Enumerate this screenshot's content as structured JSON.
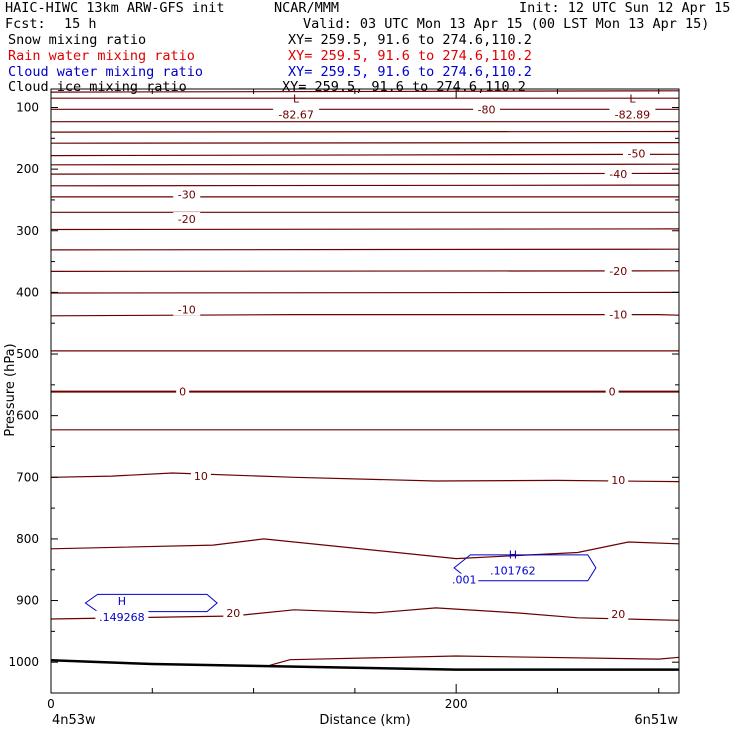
{
  "header": {
    "title": "HAIC-HIWC 13km ARW-GFS init",
    "org": "NCAR/MMM",
    "init": "Init: 12 UTC Sun 12 Apr 15",
    "fcst_label": "Fcst:",
    "fcst_value": "15 h",
    "valid": "Valid: 03 UTC Mon 13 Apr 15 (00 LST Mon 13 Apr 15)"
  },
  "fields": [
    {
      "name": "Snow mixing ratio",
      "xy": "XY= 259.5, 91.6 to 274.6,110.2",
      "color": "#000000"
    },
    {
      "name": "Rain water mixing ratio",
      "xy": "XY= 259.5, 91.6 to 274.6,110.2",
      "color": "#e00000"
    },
    {
      "name": "Cloud water mixing ratio",
      "xy": "XY= 259.5, 91.6 to 274.6,110.2",
      "color": "#0000c8"
    },
    {
      "name": "Cloud ice mixing ratio",
      "xy": "XY= 259.5, 91.6 to 274.6,110.2",
      "color": "#000000"
    }
  ],
  "colors": {
    "temperature": "#6b0000",
    "cloud_water": "#0000c8",
    "terrain": "#000000"
  },
  "chart_data": {
    "type": "line",
    "xlabel": "Distance (km)",
    "ylabel": "Pressure (hPa)",
    "xlim": [
      0,
      310
    ],
    "ylim_pressure_hpa": [
      1050,
      70
    ],
    "x_ticks": [
      0,
      200
    ],
    "y_ticks": [
      100,
      200,
      300,
      400,
      500,
      600,
      700,
      800,
      900,
      1000
    ],
    "y_tick_labels": [
      "100",
      "200",
      "300",
      "400",
      "500",
      "600",
      "700",
      "800",
      "900",
      "1000"
    ],
    "endpoints": {
      "left": "4n53w",
      "right": "6n51w"
    },
    "temperature_contours": [
      {
        "x": [
          0,
          310
        ],
        "p": [
          75,
          73
        ]
      },
      {
        "x": [
          0,
          310
        ],
        "p": [
          85,
          85
        ]
      },
      {
        "x": [
          0,
          310
        ],
        "p": [
          103,
          103
        ]
      },
      {
        "x": [
          0,
          310
        ],
        "p": [
          123,
          123
        ]
      },
      {
        "x": [
          0,
          310
        ],
        "p": [
          140,
          139
        ]
      },
      {
        "x": [
          0,
          310
        ],
        "p": [
          158,
          157
        ]
      },
      {
        "x": [
          0,
          310
        ],
        "p": [
          178,
          176
        ]
      },
      {
        "x": [
          0,
          310
        ],
        "p": [
          193,
          192
        ]
      },
      {
        "x": [
          0,
          310
        ],
        "p": [
          208,
          207
        ]
      },
      {
        "x": [
          0,
          310
        ],
        "p": [
          227,
          226
        ]
      },
      {
        "x": [
          0,
          310
        ],
        "p": [
          245,
          245
        ]
      },
      {
        "x": [
          0,
          310
        ],
        "p": [
          270,
          270
        ]
      },
      {
        "x": [
          0,
          310
        ],
        "p": [
          298,
          297
        ]
      },
      {
        "x": [
          0,
          310
        ],
        "p": [
          331,
          330
        ]
      },
      {
        "x": [
          0,
          310
        ],
        "p": [
          366,
          365
        ]
      },
      {
        "x": [
          0,
          310
        ],
        "p": [
          401,
          400
        ]
      },
      {
        "x": [
          0,
          120,
          300,
          310
        ],
        "p": [
          438,
          436,
          436,
          437
        ]
      },
      {
        "x": [
          0,
          310
        ],
        "p": [
          495,
          495
        ]
      },
      {
        "x": [
          0,
          310
        ],
        "p": [
          561,
          561
        ]
      },
      {
        "x": [
          0,
          310
        ],
        "p": [
          623,
          623
        ]
      },
      {
        "x": [
          0,
          30,
          60,
          120,
          190,
          250,
          310
        ],
        "p": [
          700,
          698,
          693,
          700,
          706,
          705,
          707
        ]
      },
      {
        "x": [
          0,
          80,
          105,
          200,
          260,
          285,
          310
        ],
        "p": [
          816,
          810,
          800,
          832,
          822,
          805,
          808
        ]
      },
      {
        "x": [
          0,
          90,
          120,
          160,
          190,
          230,
          260,
          310
        ],
        "p": [
          930,
          925,
          915,
          920,
          912,
          920,
          928,
          932
        ]
      },
      {
        "x": [
          108,
          118,
          200,
          300,
          310
        ],
        "p": [
          1005,
          996,
          990,
          995,
          992
        ]
      }
    ],
    "contour_labels": [
      {
        "text": "-30",
        "x": 67,
        "p": 241
      },
      {
        "text": "-20",
        "x": 67,
        "p": 281
      },
      {
        "text": "-10",
        "x": 67,
        "p": 428
      },
      {
        "text": "0",
        "x": 65,
        "p": 561
      },
      {
        "text": "10",
        "x": 74,
        "p": 698
      },
      {
        "text": "20",
        "x": 90,
        "p": 920
      },
      {
        "text": "-80",
        "x": 215,
        "p": 103
      },
      {
        "text": "-50",
        "x": 289,
        "p": 175
      },
      {
        "text": "-40",
        "x": 280,
        "p": 208
      },
      {
        "text": "-20",
        "x": 280,
        "p": 365
      },
      {
        "text": "-10",
        "x": 280,
        "p": 436
      },
      {
        "text": "0",
        "x": 277,
        "p": 561
      },
      {
        "text": "10",
        "x": 280,
        "p": 704
      },
      {
        "text": "20",
        "x": 280,
        "p": 922
      }
    ],
    "extrema": [
      {
        "type": "L",
        "value": "-82.67",
        "x": 121,
        "p": 100
      },
      {
        "type": "L",
        "value": "-82.89",
        "x": 287,
        "p": 100
      },
      {
        "type": "H",
        "value": ".149268",
        "x": 35,
        "p": 915
      },
      {
        "type": "H",
        "value": ".101762",
        "x": 228,
        "p": 840
      }
    ],
    "cloud_water_contours": [
      {
        "label": ".001",
        "x": [
          17,
          23,
          50,
          77,
          82,
          77,
          50,
          23,
          17
        ],
        "p": [
          904,
          890,
          890,
          890,
          904,
          918,
          918,
          918,
          904
        ]
      },
      {
        "label": ".001",
        "x": [
          199,
          207,
          232,
          265,
          269,
          265,
          232,
          207,
          199
        ],
        "p": [
          847,
          826,
          826,
          826,
          847,
          868,
          868,
          868,
          847
        ]
      }
    ],
    "cloud_water_labels": [
      {
        "text": ".001",
        "x": 204,
        "p": 866
      }
    ],
    "terrain": {
      "x": [
        0,
        50,
        100,
        150,
        200,
        310
      ],
      "p": [
        997,
        1003,
        1006,
        1009,
        1012,
        1012
      ]
    }
  }
}
